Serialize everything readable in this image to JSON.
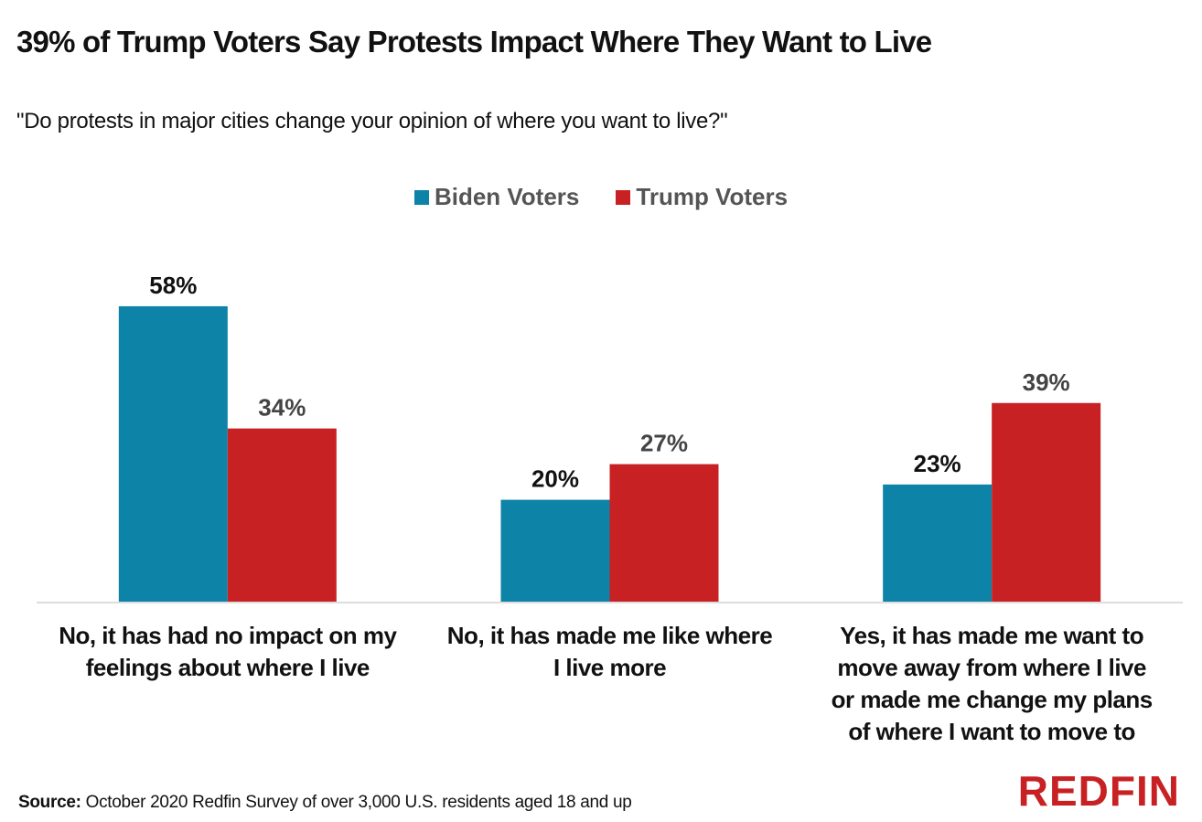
{
  "header": {
    "title": "39% of Trump Voters Say Protests Impact Where They Want to Live",
    "subtitle": "\"Do protests in major cities change your opinion of where you want to live?\""
  },
  "footer": {
    "source_label": "Source:",
    "source_text": "October 2020 Redfin Survey of over 3,000  U.S. residents aged 18 and up",
    "logo_text": "REDFIN"
  },
  "colors": {
    "biden": "#0e83a8",
    "trump": "#c82124",
    "biden_label": "#111111",
    "trump_label": "#444444",
    "axis": "#dddddd"
  },
  "chart_data": {
    "type": "bar",
    "title": "39% of Trump Voters Say Protests Impact Where They Want to Live",
    "subtitle": "\"Do protests in major cities change your opinion of where you want to live?\"",
    "xlabel": "",
    "ylabel": "",
    "ylim": [
      0,
      100
    ],
    "grid": false,
    "legend_position": "top-center",
    "categories": [
      [
        "No, it has had no impact on my",
        "feelings about where I live"
      ],
      [
        "No, it has made me like where",
        "I live more"
      ],
      [
        "Yes, it has made me want to",
        "move away from where I live",
        "or made me change my plans",
        "of where I want to move to"
      ]
    ],
    "series": [
      {
        "name": "Biden Voters",
        "values": [
          58,
          20,
          23
        ],
        "labels": [
          "58%",
          "20%",
          "23%"
        ]
      },
      {
        "name": "Trump Voters",
        "values": [
          34,
          27,
          39
        ],
        "labels": [
          "34%",
          "27%",
          "39%"
        ]
      }
    ]
  }
}
